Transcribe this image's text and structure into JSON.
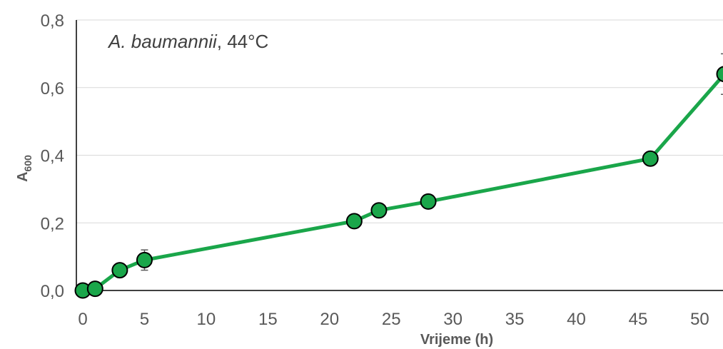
{
  "chart_data": {
    "type": "line",
    "annotation": {
      "organism": "A. baumannii",
      "condition": ", 44°C"
    },
    "xlabel": "Vrijeme (h)",
    "ylabel": {
      "main": "A",
      "subscript": "600"
    },
    "xlim": [
      0,
      52
    ],
    "ylim": [
      0,
      0.8
    ],
    "x_ticks": [
      0,
      5,
      10,
      15,
      20,
      25,
      30,
      35,
      40,
      45,
      50
    ],
    "x_tick_labels": [
      "0",
      "5",
      "10",
      "15",
      "20",
      "25",
      "30",
      "35",
      "40",
      "45",
      "50"
    ],
    "y_ticks": [
      0,
      0.2,
      0.4,
      0.6,
      0.8
    ],
    "y_tick_labels": [
      "0,0",
      "0,2",
      "0,4",
      "0,6",
      "0,8"
    ],
    "grid": "horizontal",
    "colors": {
      "line": "#1aa64a",
      "marker_fill": "#1aa64a",
      "marker_edge": "#000000",
      "grid": "#d9d9d9",
      "errorbar": "#595959"
    },
    "series": [
      {
        "x": [
          0,
          1,
          3,
          5,
          22,
          24,
          28,
          46,
          52
        ],
        "y": [
          0.0,
          0.005,
          0.06,
          0.09,
          0.205,
          0.237,
          0.263,
          0.39,
          0.64
        ],
        "error": [
          0,
          0,
          0,
          0.03,
          0,
          0,
          0,
          0,
          0.06
        ]
      }
    ]
  }
}
